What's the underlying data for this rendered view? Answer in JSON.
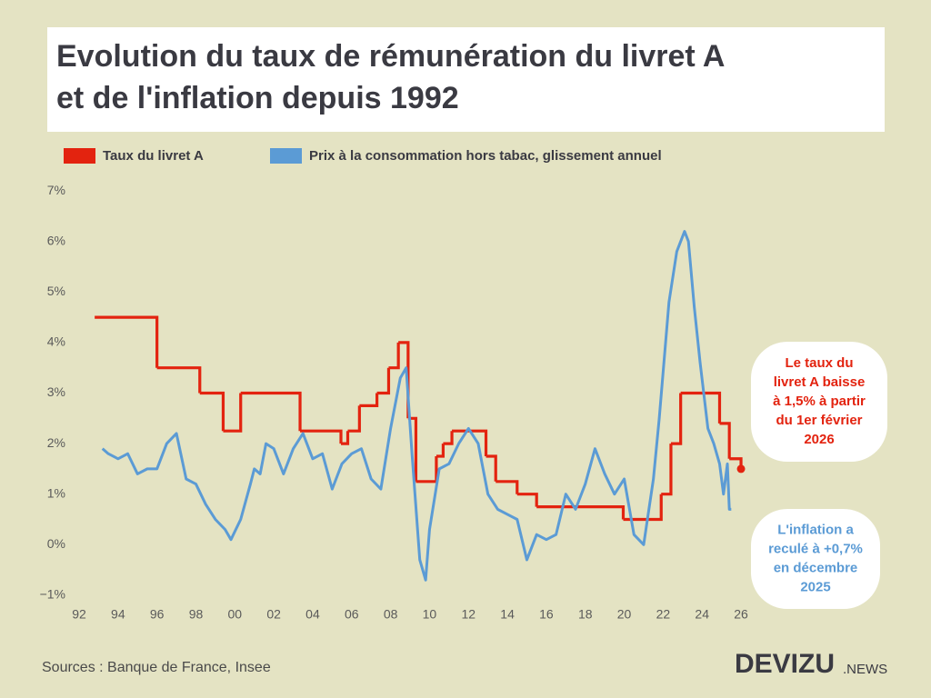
{
  "chart_data": {
    "type": "line",
    "title": [
      "Evolution du taux de rémunération du livret A",
      "et de l'inflation depuis 1992"
    ],
    "xlim": [
      1992,
      2026.4
    ],
    "ylim": [
      -1.2,
      7.2
    ],
    "xticks": [
      {
        "value": 1992,
        "label": "92"
      },
      {
        "value": 1994,
        "label": "94"
      },
      {
        "value": 1996,
        "label": "96"
      },
      {
        "value": 1998,
        "label": "98"
      },
      {
        "value": 2000,
        "label": "00"
      },
      {
        "value": 2002,
        "label": "02"
      },
      {
        "value": 2004,
        "label": "04"
      },
      {
        "value": 2006,
        "label": "06"
      },
      {
        "value": 2008,
        "label": "08"
      },
      {
        "value": 2010,
        "label": "10"
      },
      {
        "value": 2012,
        "label": "12"
      },
      {
        "value": 2014,
        "label": "14"
      },
      {
        "value": 2016,
        "label": "16"
      },
      {
        "value": 2018,
        "label": "18"
      },
      {
        "value": 2020,
        "label": "20"
      },
      {
        "value": 2022,
        "label": "22"
      },
      {
        "value": 2024,
        "label": "24"
      },
      {
        "value": 2026,
        "label": "26"
      }
    ],
    "yticks": [
      {
        "value": -1,
        "label": "−1%"
      },
      {
        "value": 0,
        "label": "0%"
      },
      {
        "value": 1,
        "label": "1%"
      },
      {
        "value": 2,
        "label": "2%"
      },
      {
        "value": 3,
        "label": "3%"
      },
      {
        "value": 4,
        "label": "4%"
      },
      {
        "value": 5,
        "label": "5%"
      },
      {
        "value": 6,
        "label": "6%"
      },
      {
        "value": 7,
        "label": "7%"
      }
    ],
    "grid": false,
    "series": [
      {
        "name": "Taux du livret A",
        "color": "#e3230f",
        "step": "post",
        "end_marker": true,
        "x": [
          1992.8,
          1996.0,
          1998.2,
          1999.4,
          2000.3,
          2003.35,
          2005.45,
          2005.8,
          2006.4,
          2007.3,
          2007.9,
          2008.4,
          2008.9,
          2009.3,
          2010.35,
          2010.7,
          2011.15,
          2012.9,
          2013.4,
          2014.5,
          2015.5,
          2019.95,
          2021.9,
          2022.4,
          2022.9,
          2024.9,
          2025.4,
          2026.0
        ],
        "values": [
          4.5,
          3.5,
          3.0,
          2.25,
          3.0,
          2.25,
          2.0,
          2.25,
          2.75,
          3.0,
          3.5,
          4.0,
          2.5,
          1.25,
          1.75,
          2.0,
          2.25,
          1.75,
          1.25,
          1.0,
          0.75,
          0.5,
          1.0,
          2.0,
          3.0,
          2.4,
          1.7,
          1.5
        ]
      },
      {
        "name": "Prix à la consommation hors tabac, glissement annuel",
        "color": "#5b9bd5",
        "x": [
          1993.2,
          1993.5,
          1994,
          1994.5,
          1995,
          1995.5,
          1996,
          1996.5,
          1997,
          1997.5,
          1998,
          1998.5,
          1999,
          1999.5,
          1999.8,
          2000.3,
          2000.8,
          2001,
          2001.3,
          2001.6,
          2002,
          2002.5,
          2003,
          2003.5,
          2004,
          2004.5,
          2005,
          2005.5,
          2006,
          2006.5,
          2007,
          2007.5,
          2008,
          2008.5,
          2008.8,
          2009.1,
          2009.5,
          2009.8,
          2010,
          2010.5,
          2011,
          2011.5,
          2012,
          2012.5,
          2013,
          2013.5,
          2014,
          2014.5,
          2015,
          2015.5,
          2016,
          2016.5,
          2017,
          2017.5,
          2018,
          2018.5,
          2019,
          2019.5,
          2020,
          2020.5,
          2021,
          2021.5,
          2021.8,
          2022.3,
          2022.7,
          2023.1,
          2023.3,
          2023.6,
          2023.9,
          2024.3,
          2024.6,
          2024.9,
          2025.1,
          2025.3,
          2025.4,
          2025.5
        ],
        "values": [
          1.9,
          1.8,
          1.7,
          1.8,
          1.4,
          1.5,
          1.5,
          2.0,
          2.2,
          1.3,
          1.2,
          0.8,
          0.5,
          0.3,
          0.1,
          0.5,
          1.2,
          1.5,
          1.4,
          2.0,
          1.9,
          1.4,
          1.9,
          2.2,
          1.7,
          1.8,
          1.1,
          1.6,
          1.8,
          1.9,
          1.3,
          1.1,
          2.3,
          3.3,
          3.5,
          1.8,
          -0.3,
          -0.7,
          0.3,
          1.5,
          1.6,
          2.0,
          2.3,
          2.0,
          1.0,
          0.7,
          0.6,
          0.5,
          -0.3,
          0.2,
          0.1,
          0.2,
          1.0,
          0.7,
          1.2,
          1.9,
          1.4,
          1.0,
          1.3,
          0.2,
          0.0,
          1.3,
          2.5,
          4.8,
          5.8,
          6.2,
          6.0,
          4.7,
          3.6,
          2.3,
          2.0,
          1.6,
          1.0,
          1.6,
          0.7,
          0.7
        ]
      }
    ],
    "annotations": [
      {
        "lines": [
          "Le taux du",
          "livret A baisse",
          "à 1,5% à partir",
          "du 1er février",
          "2026"
        ],
        "color": "#e3230f"
      },
      {
        "lines": [
          "L'inflation a",
          "reculé à +0,7%",
          "en décembre",
          "2025"
        ],
        "color": "#5b9bd5"
      }
    ],
    "source": "Sources : Banque de France, Insee",
    "brand": {
      "name": "DEVIZU",
      "suffix": ".NEWS"
    }
  }
}
